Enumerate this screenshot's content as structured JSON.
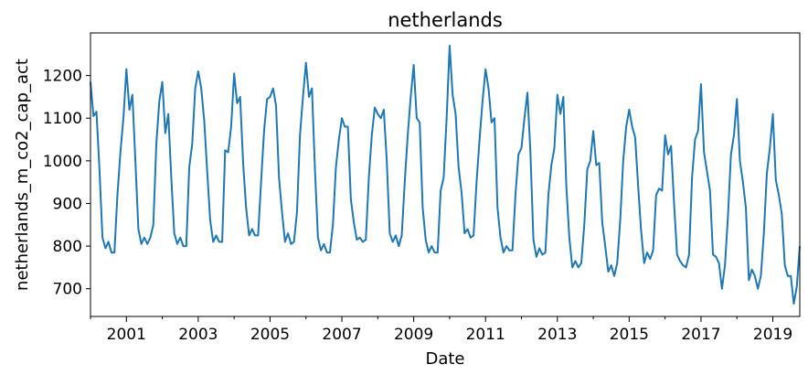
{
  "chart_data": {
    "type": "line",
    "title": "netherlands",
    "xlabel": "Date",
    "ylabel": "netherlands_m_co2_cap_act",
    "xlim": [
      "2000-01",
      "2019-10"
    ],
    "ylim": [
      635,
      1300
    ],
    "x_ticks": [
      "2001",
      "2003",
      "2005",
      "2007",
      "2009",
      "2011",
      "2013",
      "2015",
      "2017",
      "2019"
    ],
    "y_ticks": [
      700,
      800,
      900,
      1000,
      1100,
      1200
    ],
    "grid": false,
    "legend": "none",
    "color": "#1f77b4",
    "series": [
      {
        "start": "2000-01",
        "frequency": "monthly",
        "values": [
          1185,
          1105,
          1115,
          980,
          820,
          795,
          810,
          785,
          785,
          920,
          1020,
          1100,
          1215,
          1120,
          1155,
          1000,
          840,
          805,
          820,
          805,
          820,
          850,
          1040,
          1140,
          1185,
          1065,
          1110,
          960,
          830,
          805,
          820,
          800,
          800,
          985,
          1040,
          1170,
          1210,
          1170,
          1095,
          975,
          860,
          810,
          825,
          810,
          810,
          1025,
          1020,
          1080,
          1205,
          1135,
          1150,
          995,
          890,
          825,
          840,
          825,
          825,
          950,
          1070,
          1145,
          1150,
          1170,
          1130,
          960,
          880,
          810,
          830,
          805,
          810,
          880,
          1060,
          1150,
          1230,
          1150,
          1170,
          980,
          820,
          790,
          805,
          785,
          785,
          850,
          985,
          1050,
          1100,
          1080,
          1080,
          910,
          855,
          815,
          820,
          810,
          815,
          960,
          1060,
          1125,
          1110,
          1100,
          1120,
          1000,
          830,
          810,
          825,
          800,
          825,
          950,
          1060,
          1150,
          1225,
          1100,
          1090,
          890,
          815,
          785,
          800,
          785,
          785,
          930,
          960,
          1100,
          1270,
          1155,
          1110,
          985,
          925,
          830,
          840,
          820,
          825,
          950,
          1050,
          1140,
          1215,
          1170,
          1090,
          1100,
          890,
          820,
          785,
          800,
          790,
          790,
          920,
          1015,
          1030,
          1100,
          1160,
          1020,
          815,
          775,
          795,
          780,
          785,
          920,
          990,
          1030,
          1155,
          1110,
          1150,
          940,
          820,
          750,
          765,
          750,
          760,
          850,
          980,
          1000,
          1070,
          990,
          995,
          855,
          800,
          740,
          755,
          730,
          760,
          860,
          1000,
          1080,
          1120,
          1080,
          1055,
          940,
          835,
          760,
          785,
          770,
          790,
          920,
          935,
          930,
          1060,
          1015,
          1035,
          900,
          780,
          765,
          755,
          750,
          780,
          960,
          1050,
          1070,
          1180,
          1020,
          975,
          930,
          780,
          775,
          760,
          700,
          755,
          870,
          1015,
          1060,
          1145,
          1000,
          950,
          890,
          720,
          745,
          730,
          700,
          730,
          830,
          970,
          1030,
          1110,
          955,
          920,
          875,
          755,
          730,
          730,
          665,
          705,
          800
        ]
      }
    ]
  }
}
